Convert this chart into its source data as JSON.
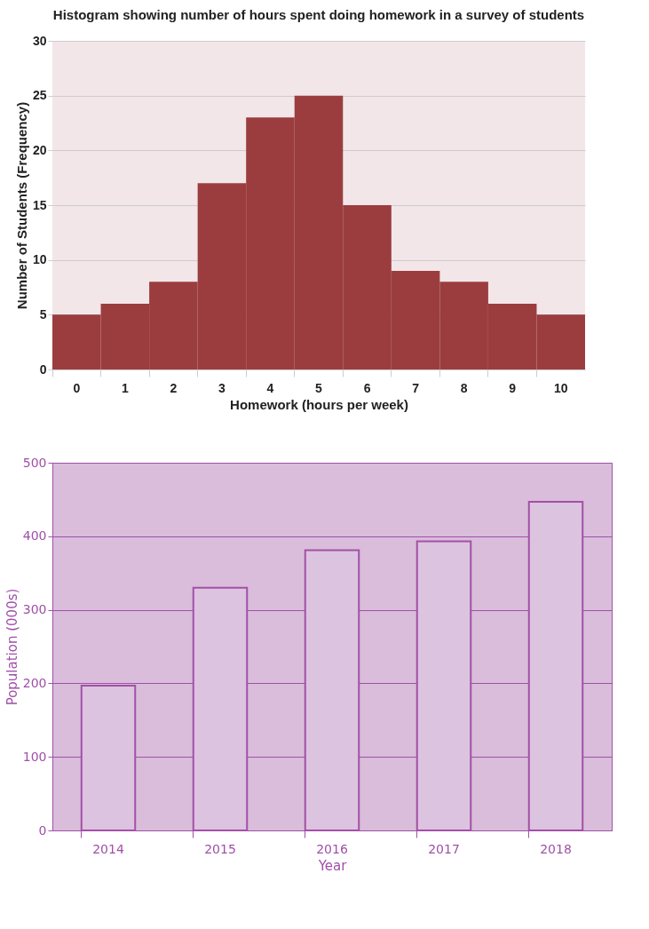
{
  "chart_data": [
    {
      "type": "bar",
      "title": "Histogram showing number of hours spent doing homework  in a survey of students",
      "xlabel": "Homework (hours per week)",
      "ylabel": "Number of Students (Frequency)",
      "categories": [
        "0",
        "1",
        "2",
        "3",
        "4",
        "5",
        "6",
        "7",
        "8",
        "9",
        "10"
      ],
      "values": [
        5,
        6,
        8,
        17,
        23,
        25,
        15,
        9,
        8,
        6,
        5
      ],
      "color": "#9b3d3f",
      "ylim": [
        0,
        30
      ],
      "yticks": [
        0,
        5,
        10,
        15,
        20,
        25,
        30
      ],
      "grid": "y"
    },
    {
      "type": "bar",
      "xlabel": "Year",
      "ylabel": "Population (000s)",
      "categories": [
        "2014",
        "2015",
        "2016",
        "2017",
        "2018"
      ],
      "values": [
        197,
        330,
        381,
        393,
        447
      ],
      "color": "#dcc3df",
      "ylim": [
        0,
        500
      ],
      "yticks": [
        0,
        100,
        200,
        300,
        400,
        500
      ],
      "grid": "y"
    }
  ]
}
